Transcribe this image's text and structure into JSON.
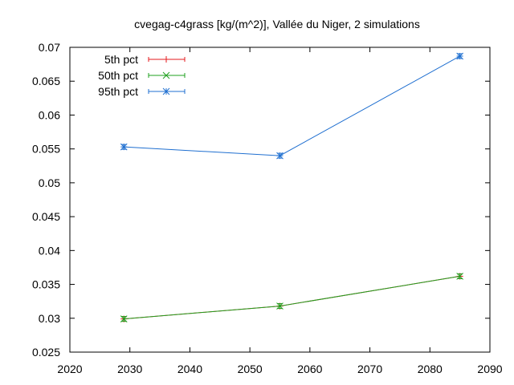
{
  "chart_data": {
    "type": "line",
    "title": "cvegag-c4grass [kg/(m^2)], Vallée du Niger, 2 simulations",
    "xlabel": "",
    "ylabel": "",
    "xlim": [
      2020,
      2090
    ],
    "ylim": [
      0.025,
      0.07
    ],
    "xticks": [
      2020,
      2030,
      2040,
      2050,
      2060,
      2070,
      2080,
      2090
    ],
    "yticks": [
      0.025,
      0.03,
      0.035,
      0.04,
      0.045,
      0.05,
      0.055,
      0.06,
      0.065,
      0.07
    ],
    "xtick_labels": [
      "2020",
      "2030",
      "2040",
      "2050",
      "2060",
      "2070",
      "2080",
      "2090"
    ],
    "ytick_labels": [
      "0.025",
      "0.03",
      "0.035",
      "0.04",
      "0.045",
      "0.05",
      "0.055",
      "0.06",
      "0.065",
      "0.07"
    ],
    "grid": false,
    "legend_position": "top-left",
    "x": [
      2029,
      2055,
      2085
    ],
    "series": [
      {
        "name": "5th pct",
        "color": "#e41a1c",
        "marker": "plus",
        "values": [
          0.0299,
          0.0318,
          0.0362
        ]
      },
      {
        "name": "50th pct",
        "color": "#1fa01f",
        "marker": "x",
        "values": [
          0.0299,
          0.0318,
          0.0362
        ]
      },
      {
        "name": "95th pct",
        "color": "#1f6fd0",
        "marker": "star",
        "values": [
          0.0553,
          0.054,
          0.0687
        ]
      }
    ]
  }
}
